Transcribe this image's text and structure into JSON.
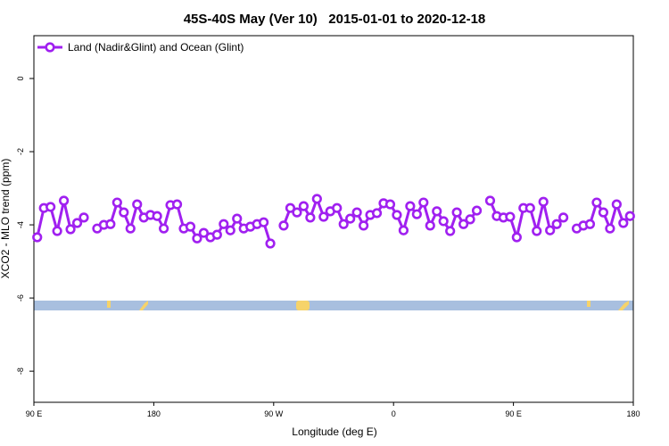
{
  "chart_data": {
    "type": "line",
    "title": "45S-40S May (Ver 10)   2015-01-01 to 2020-12-18",
    "x_label": "Longitude (deg E)",
    "y_label": "XCO2 - MLO trend (ppm)",
    "x": [
      92.5,
      97.5,
      102.5,
      107.5,
      112.5,
      117.5,
      122.5,
      127.5,
      132.5,
      137.5,
      142.5,
      147.5,
      152.5,
      157.5,
      162.5,
      167.5,
      172.5,
      177.5,
      182.5,
      187.5,
      192.5,
      197.5,
      202.5,
      207.5,
      212.5,
      217.5,
      222.5,
      227.5,
      232.5,
      237.5,
      242.5,
      247.5,
      252.5,
      257.5,
      262.5,
      267.5,
      272.5,
      277.5,
      282.5,
      287.5,
      292.5,
      297.5,
      302.5,
      307.5,
      312.5,
      317.5,
      322.5,
      327.5,
      332.5,
      337.5,
      342.5,
      347.5,
      352.5,
      357.5,
      362.5,
      367.5,
      372.5,
      377.5,
      382.5,
      387.5,
      392.5,
      397.5,
      402.5,
      407.5,
      412.5,
      417.5,
      422.5,
      427.5,
      432.5,
      437.5,
      442.5,
      447.5,
      452.5,
      457.5,
      462.5,
      467.5,
      472.5,
      477.5,
      482.5,
      487.5,
      492.5,
      497.5,
      502.5,
      507.5,
      512.5,
      517.5,
      522.5,
      527.5,
      532.5,
      537.5
    ],
    "series": [
      {
        "name": "Land (Nadir&Glint) and Ocean (Glint)",
        "color": "#a020f0",
        "values": [
          -4.34,
          -3.54,
          -3.51,
          -4.17,
          -3.34,
          -4.12,
          -3.95,
          -3.8,
          null,
          -4.1,
          -4.0,
          -3.98,
          -3.39,
          -3.66,
          -4.1,
          -3.44,
          -3.8,
          -3.73,
          -3.76,
          -4.1,
          -3.46,
          -3.44,
          -4.1,
          -4.05,
          -4.37,
          -4.22,
          -4.34,
          -4.27,
          -3.98,
          -4.15,
          -3.83,
          -4.1,
          -4.05,
          -3.98,
          -3.93,
          -4.51,
          null,
          -4.02,
          -3.54,
          -3.66,
          -3.49,
          -3.8,
          -3.29,
          -3.78,
          -3.63,
          -3.54,
          -3.98,
          -3.83,
          -3.66,
          -4.02,
          -3.73,
          -3.68,
          -3.41,
          -3.44,
          -3.73,
          -4.15,
          -3.49,
          -3.71,
          -3.39,
          -4.02,
          -3.63,
          -3.9,
          -4.17,
          -3.66,
          -3.98,
          -3.85,
          -3.61,
          null,
          -3.34,
          -3.76,
          -3.8,
          -3.78,
          -4.34,
          -3.54,
          -3.54,
          -4.17,
          -3.37,
          -4.15,
          -3.98,
          -3.8,
          null,
          -4.1,
          -4.02,
          -3.98,
          -3.39,
          -3.66,
          -4.1,
          -3.44,
          -3.95,
          -3.76
        ]
      }
    ],
    "xlim": [
      90,
      540
    ],
    "xticks": [
      {
        "value": 90,
        "label": "90 E"
      },
      180,
      {
        "value": 270,
        "label": "90 W"
      },
      {
        "value": 360,
        "label": "0"
      },
      {
        "value": 450,
        "label": "90 E"
      },
      {
        "value": 540,
        "label": "180"
      }
    ],
    "ylim": [
      -8.85,
      1.17
    ],
    "yticks": [
      0,
      -2,
      -4,
      -6,
      -8
    ],
    "legend": "top-left"
  }
}
